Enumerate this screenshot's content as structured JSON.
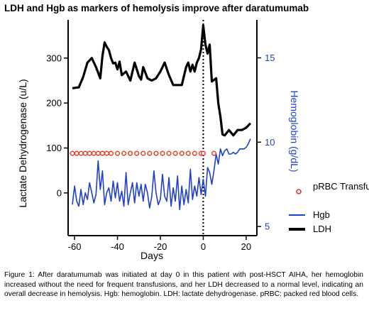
{
  "title": "LDH and Hgb as markers of hemolysis improve after daratumumab",
  "caption": "Figure 1: After daratumumab was initiated at day 0 in this patient with post-HSCT AIHA, her hemoglobin increased without the need for frequent transfusions, and her LDH decreased to a normal level, indicating an overall decrease in hemolysis. Hgb: hemoglobin. LDH: lactate dehydrogenase. pRBC: packed red blood cells.",
  "colors": {
    "ldh": "#000000",
    "hgb": "#1f3fd1",
    "prbc": "#e0402a",
    "right_axis": "#1f3fd1"
  },
  "chart_data": {
    "type": "line",
    "xlabel": "Days",
    "ylabel_left": "Lactate Dehydrogenase (u/L)",
    "ylabel_right": "Hemoglobin (g/dL)",
    "xlim": [
      -63,
      25
    ],
    "ylim_left": [
      -95,
      385
    ],
    "ylim_right": [
      4.46,
      17.25
    ],
    "x_ticks": [
      -60,
      -40,
      -20,
      0,
      20
    ],
    "y_left_ticks": [
      0,
      100,
      200,
      300
    ],
    "y_right_ticks": [
      5,
      10,
      15
    ],
    "vline_x": 0,
    "legend_position": "right",
    "legend": [
      "pRBC Transfusions",
      "Hgb",
      "LDH"
    ],
    "series": [
      {
        "name": "LDH",
        "axis": "left",
        "x": [
          -61,
          -58,
          -56,
          -54,
          -52,
          -50,
          -48,
          -47,
          -46,
          -45,
          -44,
          -43,
          -42,
          -41,
          -40,
          -39,
          -38,
          -36,
          -34,
          -32,
          -30,
          -29,
          -28,
          -26,
          -24,
          -22,
          -20,
          -18,
          -16,
          -14,
          -12,
          -10,
          -9,
          -8,
          -7,
          -6,
          -5,
          -4,
          -3,
          -2,
          -1,
          0,
          1,
          2,
          3,
          4,
          6,
          7,
          8,
          9,
          10,
          12,
          14,
          16,
          18,
          20,
          22
        ],
        "y": [
          233,
          235,
          258,
          290,
          300,
          280,
          255,
          305,
          335,
          325,
          318,
          300,
          288,
          290,
          275,
          292,
          262,
          270,
          250,
          290,
          260,
          252,
          280,
          255,
          250,
          255,
          270,
          290,
          262,
          240,
          240,
          240,
          260,
          280,
          290,
          270,
          285,
          270,
          290,
          300,
          320,
          373,
          330,
          310,
          330,
          248,
          255,
          200,
          170,
          130,
          128,
          140,
          128,
          140,
          140,
          145,
          155
        ]
      },
      {
        "name": "Hgb",
        "axis": "right",
        "x": [
          -61,
          -60,
          -59,
          -58,
          -57,
          -56,
          -55,
          -54,
          -53,
          -52,
          -51,
          -50,
          -49,
          -48,
          -47,
          -46,
          -45,
          -44,
          -43,
          -42,
          -41,
          -40,
          -39,
          -38,
          -37,
          -36,
          -35,
          -34,
          -33,
          -32,
          -31,
          -30,
          -29,
          -28,
          -27,
          -26,
          -25,
          -24,
          -23,
          -22,
          -21,
          -20,
          -19,
          -18,
          -17,
          -16,
          -15,
          -14,
          -13,
          -12,
          -11,
          -10,
          -9,
          -8,
          -7,
          -6,
          -5,
          -4,
          -3,
          -2,
          -1,
          0,
          1,
          2,
          3,
          4,
          5,
          6,
          7,
          8,
          9,
          10,
          11,
          12,
          13,
          14,
          15,
          16,
          17,
          18,
          19,
          20,
          21,
          22
        ],
        "y": [
          6.3,
          7.4,
          6.5,
          6.2,
          7.2,
          6.3,
          7.0,
          6.6,
          7.6,
          7.0,
          6.4,
          6.9,
          8.9,
          7.2,
          8.3,
          6.3,
          7.0,
          7.3,
          6.5,
          7.7,
          6.7,
          7.6,
          6.5,
          7.1,
          6.2,
          8.2,
          6.3,
          7.0,
          7.6,
          6.4,
          7.6,
          6.8,
          7.5,
          6.5,
          7.5,
          7.0,
          6.1,
          6.8,
          8.3,
          7.0,
          6.3,
          6.6,
          8.1,
          6.8,
          6.5,
          7.9,
          6.2,
          7.3,
          6.5,
          8.0,
          6.0,
          7.4,
          6.3,
          7.2,
          6.4,
          8.4,
          6.6,
          7.4,
          6.8,
          7.9,
          6.9,
          7.8,
          6.8,
          8.5,
          8.2,
          7.5,
          8.3,
          9.3,
          8.7,
          9.6,
          9.2,
          9.5,
          9.6,
          9.3,
          9.3,
          9.4,
          9.3,
          9.4,
          9.6,
          9.6,
          9.6,
          9.7,
          9.9,
          10.2
        ]
      },
      {
        "name": "pRBC Transfusions",
        "axis": "left",
        "marker_only": true,
        "x": [
          -61,
          -59,
          -57,
          -55,
          -53,
          -51,
          -49,
          -47,
          -45,
          -43,
          -40,
          -37,
          -34,
          -31,
          -28,
          -25,
          -22,
          -19,
          -16,
          -13,
          -10,
          -7,
          -4,
          -1,
          0,
          5
        ],
        "y": [
          88,
          88,
          88,
          88,
          88,
          88,
          88,
          88,
          88,
          88,
          88,
          88,
          88,
          88,
          88,
          88,
          88,
          88,
          88,
          88,
          88,
          88,
          88,
          88,
          88,
          88
        ]
      }
    ]
  }
}
